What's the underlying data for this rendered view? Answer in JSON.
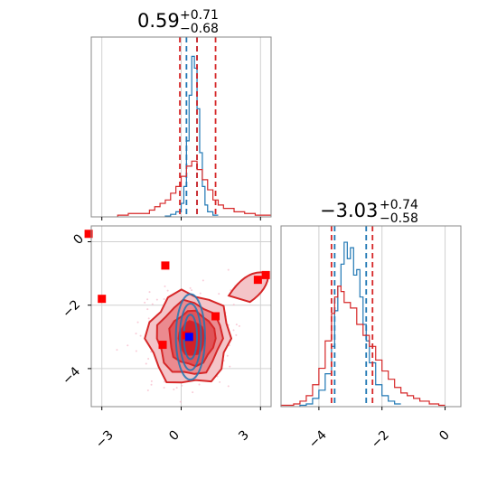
{
  "chart_data": [
    {
      "type": "histogram",
      "panel": "x1 marginal",
      "title": {
        "main": "0.59",
        "upper": "+0.71",
        "lower": "−0.68"
      },
      "xlim": [
        -3.4,
        3.4
      ],
      "grid": true,
      "series": [
        {
          "color": "#1f77b4",
          "bins": [
            [
              -0.6,
              0.5
            ],
            [
              -0.4,
              1.5
            ],
            [
              -0.2,
              3
            ],
            [
              0.0,
              8
            ],
            [
              0.1,
              18
            ],
            [
              0.2,
              45
            ],
            [
              0.3,
              72
            ],
            [
              0.4,
              95
            ],
            [
              0.5,
              88
            ],
            [
              0.6,
              64
            ],
            [
              0.7,
              38
            ],
            [
              0.8,
              18
            ],
            [
              0.9,
              7
            ],
            [
              1.0,
              3
            ],
            [
              1.2,
              1
            ]
          ],
          "quantile_lines": [
            0.2,
            0.6
          ]
        },
        {
          "color": "#d62728",
          "bins": [
            [
              -2.4,
              1
            ],
            [
              -2.0,
              2
            ],
            [
              -1.6,
              2
            ],
            [
              -1.2,
              4
            ],
            [
              -1.0,
              6
            ],
            [
              -0.8,
              8
            ],
            [
              -0.6,
              10
            ],
            [
              -0.4,
              14
            ],
            [
              -0.2,
              18
            ],
            [
              0.0,
              24
            ],
            [
              0.2,
              30
            ],
            [
              0.4,
              33
            ],
            [
              0.6,
              28
            ],
            [
              0.8,
              22
            ],
            [
              1.0,
              16
            ],
            [
              1.2,
              10
            ],
            [
              1.4,
              7
            ],
            [
              1.6,
              5
            ],
            [
              2.0,
              3
            ],
            [
              2.4,
              2
            ],
            [
              2.8,
              1
            ],
            [
              3.2,
              1
            ]
          ],
          "quantile_lines": [
            -0.05,
            0.6,
            1.3
          ]
        }
      ]
    },
    {
      "type": "histogram",
      "panel": "x2 marginal",
      "title": {
        "main": "−3.03",
        "upper": "+0.74",
        "lower": "−0.58"
      },
      "xlim": [
        -5.2,
        0.5
      ],
      "xticks": [
        -4,
        -2,
        0
      ],
      "xtick_labels": [
        "−4",
        "−2",
        "0"
      ],
      "grid": true,
      "series": [
        {
          "color": "#1f77b4",
          "bins": [
            [
              -4.6,
              0.5
            ],
            [
              -4.4,
              1
            ],
            [
              -4.2,
              3
            ],
            [
              -4.0,
              6
            ],
            [
              -3.8,
              12
            ],
            [
              -3.6,
              22
            ],
            [
              -3.5,
              35
            ],
            [
              -3.4,
              44
            ],
            [
              -3.3,
              52
            ],
            [
              -3.2,
              60
            ],
            [
              -3.1,
              54
            ],
            [
              -3.0,
              58
            ],
            [
              -2.9,
              48
            ],
            [
              -2.8,
              50
            ],
            [
              -2.7,
              40
            ],
            [
              -2.6,
              30
            ],
            [
              -2.5,
              24
            ],
            [
              -2.4,
              16
            ],
            [
              -2.2,
              8
            ],
            [
              -2.0,
              4
            ],
            [
              -1.8,
              2
            ],
            [
              -1.6,
              1
            ]
          ],
          "quantile_lines": [
            -3.5,
            -2.5
          ]
        },
        {
          "color": "#d62728",
          "bins": [
            [
              -5.2,
              0.5
            ],
            [
              -4.8,
              1
            ],
            [
              -4.6,
              2
            ],
            [
              -4.4,
              4
            ],
            [
              -4.2,
              8
            ],
            [
              -4.0,
              14
            ],
            [
              -3.8,
              24
            ],
            [
              -3.6,
              34
            ],
            [
              -3.5,
              40
            ],
            [
              -3.4,
              44
            ],
            [
              -3.3,
              42
            ],
            [
              -3.2,
              38
            ],
            [
              -3.0,
              36
            ],
            [
              -2.8,
              30
            ],
            [
              -2.6,
              26
            ],
            [
              -2.4,
              22
            ],
            [
              -2.2,
              17
            ],
            [
              -2.0,
              13
            ],
            [
              -1.8,
              10
            ],
            [
              -1.6,
              7
            ],
            [
              -1.4,
              5
            ],
            [
              -1.2,
              4
            ],
            [
              -1.0,
              3
            ],
            [
              -0.8,
              2
            ],
            [
              -0.5,
              1
            ],
            [
              -0.2,
              0.5
            ]
          ],
          "quantile_lines": [
            -3.6,
            -2.3
          ]
        }
      ]
    },
    {
      "type": "scatter",
      "panel": "2D contour x1 vs x2",
      "xlim": [
        -3.4,
        3.4
      ],
      "ylim": [
        -5.2,
        0.5
      ],
      "xticks": [
        -3,
        0,
        3
      ],
      "xtick_labels": [
        "−3",
        "0",
        "3"
      ],
      "yticks": [
        0,
        -2,
        -4
      ],
      "ytick_labels": [
        "0",
        "−2",
        "−4"
      ],
      "grid": true,
      "red_contour_center": [
        0.3,
        -3.05
      ],
      "blue_contour_center": [
        0.35,
        -3.0
      ],
      "red_markers": [
        [
          -3.5,
          0.25
        ],
        [
          -3.0,
          -1.8
        ],
        [
          -0.6,
          -0.75
        ],
        [
          2.9,
          -1.2
        ],
        [
          3.2,
          -1.05
        ],
        [
          1.3,
          -2.35
        ],
        [
          -0.7,
          -3.25
        ],
        [
          0.2,
          -2.95
        ]
      ],
      "blue_markers": [
        [
          0.3,
          -3.0
        ]
      ],
      "colors": {
        "red": "#d62728",
        "blue": "#1f77b4",
        "marker_red": "#ff0000",
        "marker_blue": "#0000ff"
      }
    }
  ]
}
